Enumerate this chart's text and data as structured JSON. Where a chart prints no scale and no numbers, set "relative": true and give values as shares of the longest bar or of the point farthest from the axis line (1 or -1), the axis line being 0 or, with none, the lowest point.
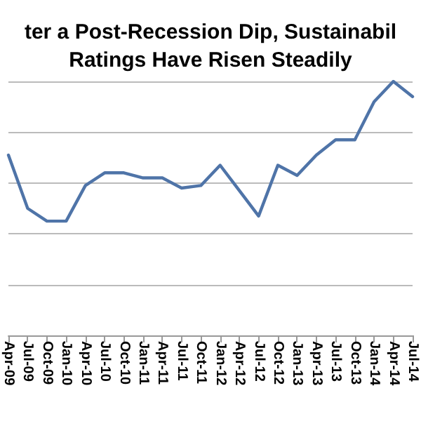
{
  "chart_data": {
    "type": "line",
    "title": "ter a Post-Recession Dip, Sustainabil\nRatings Have Risen Steadily",
    "relative": true,
    "grid": "y",
    "marker": "none",
    "line_style": "solid",
    "categories": [
      "Apr-09",
      "Jul-09",
      "Oct-09",
      "Jan-10",
      "Apr-10",
      "Jul-10",
      "Oct-10",
      "Jan-11",
      "Apr-11",
      "Jul-11",
      "Oct-11",
      "Jan-12",
      "Apr-12",
      "Jul-12",
      "Oct-12",
      "Jan-13",
      "Apr-13",
      "Jul-13",
      "Oct-13",
      "Jan-14",
      "Apr-14",
      "Jul-14"
    ],
    "series": [
      {
        "color": "#4f74a8",
        "values": [
          0.71,
          0.5,
          0.45,
          0.45,
          0.59,
          0.64,
          0.64,
          0.62,
          0.62,
          0.58,
          0.59,
          0.67,
          0.57,
          0.47,
          0.67,
          0.63,
          0.71,
          0.77,
          0.77,
          0.92,
          1.0,
          0.94
        ]
      }
    ]
  }
}
